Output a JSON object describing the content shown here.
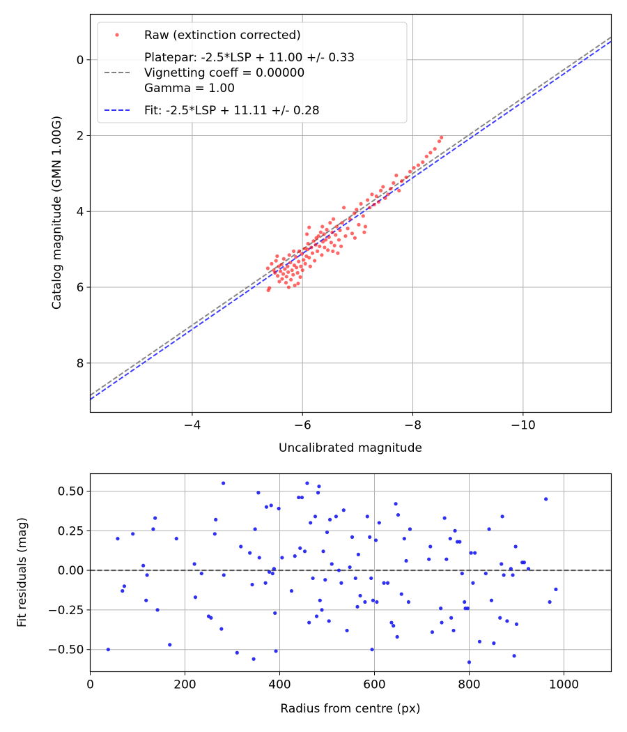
{
  "chart_data": [
    {
      "type": "scatter",
      "xlabel": "Uncalibrated magnitude",
      "ylabel": "Catalog magnitude (GMN 1.00G)",
      "xlim": [
        -2.15,
        -11.6
      ],
      "ylim": [
        9.3,
        -1.2
      ],
      "x_ticks": [
        -4,
        -6,
        -8,
        -10
      ],
      "x_tick_labels": [
        "−4",
        "−6",
        "−8",
        "−10"
      ],
      "y_ticks": [
        0,
        2,
        4,
        6,
        8
      ],
      "y_tick_labels": [
        "0",
        "2",
        "4",
        "6",
        "8"
      ],
      "grid": true,
      "legend_position": "top-left",
      "legend": {
        "raw": "Raw (extinction corrected)",
        "platepar_lines": [
          "Platepar: -2.5*LSP + 11.00 +/- 0.33",
          "Vignetting coeff = 0.00000",
          "Gamma = 1.00"
        ],
        "fit": "Fit: -2.5*LSP + 11.11 +/- 0.28"
      },
      "colors": {
        "raw": "#ff0000",
        "platepar": "#808080",
        "fit": "#3333ff"
      },
      "lines": [
        {
          "name": "Platepar",
          "slope": 1.0,
          "intercept": 11.0,
          "color": "#808080"
        },
        {
          "name": "Fit",
          "slope": 1.0,
          "intercept": 11.11,
          "color": "#3333ff"
        }
      ],
      "series": [
        {
          "name": "Raw (extinction corrected)",
          "points": [
            [
              -5.38,
              6.08
            ],
            [
              -5.4,
              6.02
            ],
            [
              -5.37,
              5.5
            ],
            [
              -5.44,
              5.38
            ],
            [
              -5.48,
              5.55
            ],
            [
              -5.5,
              5.62
            ],
            [
              -5.52,
              5.3
            ],
            [
              -5.55,
              5.7
            ],
            [
              -5.57,
              5.45
            ],
            [
              -5.58,
              5.85
            ],
            [
              -5.6,
              5.58
            ],
            [
              -5.62,
              5.4
            ],
            [
              -5.63,
              5.78
            ],
            [
              -5.65,
              5.65
            ],
            [
              -5.66,
              5.25
            ],
            [
              -5.68,
              5.52
            ],
            [
              -5.7,
              5.88
            ],
            [
              -5.71,
              5.72
            ],
            [
              -5.73,
              5.45
            ],
            [
              -5.74,
              5.6
            ],
            [
              -5.76,
              5.15
            ],
            [
              -5.78,
              5.35
            ],
            [
              -5.79,
              5.8
            ],
            [
              -5.81,
              5.55
            ],
            [
              -5.83,
              5.67
            ],
            [
              -5.85,
              5.42
            ],
            [
              -5.86,
              5.95
            ],
            [
              -5.88,
              5.2
            ],
            [
              -5.89,
              5.48
            ],
            [
              -5.91,
              5.62
            ],
            [
              -5.93,
              5.32
            ],
            [
              -5.94,
              5.05
            ],
            [
              -5.96,
              5.73
            ],
            [
              -5.97,
              5.45
            ],
            [
              -5.99,
              5.12
            ],
            [
              -6.0,
              5.55
            ],
            [
              -6.02,
              5.28
            ],
            [
              -6.04,
              4.98
            ],
            [
              -6.05,
              5.38
            ],
            [
              -6.07,
              5.18
            ],
            [
              -6.09,
              5.0
            ],
            [
              -6.1,
              4.85
            ],
            [
              -6.12,
              5.22
            ],
            [
              -6.14,
              5.45
            ],
            [
              -6.16,
              4.95
            ],
            [
              -6.18,
              5.1
            ],
            [
              -6.2,
              4.78
            ],
            [
              -6.22,
              5.3
            ],
            [
              -6.24,
              4.88
            ],
            [
              -6.25,
              4.7
            ],
            [
              -6.27,
              5.05
            ],
            [
              -6.29,
              4.65
            ],
            [
              -6.31,
              4.92
            ],
            [
              -6.33,
              4.55
            ],
            [
              -6.35,
              5.15
            ],
            [
              -6.37,
              4.8
            ],
            [
              -6.39,
              4.6
            ],
            [
              -6.4,
              4.95
            ],
            [
              -6.42,
              4.75
            ],
            [
              -6.44,
              4.48
            ],
            [
              -6.46,
              5.02
            ],
            [
              -6.48,
              4.68
            ],
            [
              -6.5,
              4.3
            ],
            [
              -6.52,
              4.82
            ],
            [
              -6.54,
              4.55
            ],
            [
              -6.56,
              4.2
            ],
            [
              -6.58,
              4.9
            ],
            [
              -6.6,
              4.62
            ],
            [
              -6.62,
              4.4
            ],
            [
              -6.64,
              5.1
            ],
            [
              -6.66,
              4.75
            ],
            [
              -6.68,
              4.5
            ],
            [
              -6.7,
              4.92
            ],
            [
              -6.72,
              4.3
            ],
            [
              -6.75,
              3.9
            ],
            [
              -6.78,
              4.65
            ],
            [
              -6.82,
              4.45
            ],
            [
              -6.86,
              4.2
            ],
            [
              -6.9,
              4.58
            ],
            [
              -6.94,
              4.05
            ],
            [
              -6.98,
              3.95
            ],
            [
              -7.02,
              4.35
            ],
            [
              -7.06,
              3.8
            ],
            [
              -7.1,
              4.12
            ],
            [
              -7.14,
              4.4
            ],
            [
              -7.18,
              3.7
            ],
            [
              -7.22,
              3.9
            ],
            [
              -7.26,
              3.55
            ],
            [
              -7.3,
              3.82
            ],
            [
              -7.34,
              3.6
            ],
            [
              -7.38,
              3.75
            ],
            [
              -7.42,
              3.45
            ],
            [
              -7.46,
              3.35
            ],
            [
              -7.5,
              3.65
            ],
            [
              -7.55,
              3.55
            ],
            [
              -7.6,
              3.4
            ],
            [
              -7.65,
              3.25
            ],
            [
              -7.7,
              3.05
            ],
            [
              -7.75,
              3.45
            ],
            [
              -7.8,
              3.2
            ],
            [
              -7.88,
              3.1
            ],
            [
              -7.95,
              2.95
            ],
            [
              -8.02,
              2.85
            ],
            [
              -8.1,
              2.78
            ],
            [
              -8.18,
              2.7
            ],
            [
              -8.25,
              2.55
            ],
            [
              -8.32,
              2.45
            ],
            [
              -8.4,
              2.35
            ],
            [
              -8.48,
              2.15
            ],
            [
              -8.52,
              2.05
            ],
            [
              -6.12,
              4.42
            ],
            [
              -6.08,
              4.6
            ],
            [
              -5.92,
              5.9
            ],
            [
              -5.84,
              5.05
            ],
            [
              -6.36,
              4.4
            ],
            [
              -6.55,
              5.05
            ],
            [
              -6.95,
              4.7
            ],
            [
              -7.12,
              4.55
            ],
            [
              -5.54,
              5.18
            ],
            [
              -5.75,
              6.0
            ]
          ]
        }
      ]
    },
    {
      "type": "scatter",
      "xlabel": "Radius from centre (px)",
      "ylabel": "Fit residuals (mag)",
      "xlim": [
        0,
        1100
      ],
      "ylim": [
        -0.64,
        0.61
      ],
      "x_ticks": [
        0,
        200,
        400,
        600,
        800,
        1000
      ],
      "x_tick_labels": [
        "0",
        "200",
        "400",
        "600",
        "800",
        "1000"
      ],
      "y_ticks": [
        0.5,
        0.25,
        0.0,
        -0.25,
        -0.5
      ],
      "y_tick_labels": [
        "0.50",
        "0.25",
        "0.00",
        "−0.25",
        "−0.50"
      ],
      "grid": true,
      "zero_line": {
        "value": 0.0,
        "color": "#555555"
      },
      "colors": {
        "points": "#1a1aee"
      },
      "series": [
        {
          "name": "Residuals",
          "points": [
            [
              38,
              -0.5
            ],
            [
              58,
              0.2
            ],
            [
              68,
              -0.13
            ],
            [
              72,
              -0.1
            ],
            [
              90,
              0.23
            ],
            [
              112,
              0.03
            ],
            [
              118,
              -0.19
            ],
            [
              120,
              -0.03
            ],
            [
              133,
              0.26
            ],
            [
              137,
              0.33
            ],
            [
              142,
              -0.25
            ],
            [
              168,
              -0.47
            ],
            [
              182,
              0.2
            ],
            [
              220,
              0.04
            ],
            [
              222,
              -0.17
            ],
            [
              235,
              -0.02
            ],
            [
              250,
              -0.29
            ],
            [
              255,
              -0.3
            ],
            [
              263,
              0.23
            ],
            [
              265,
              0.32
            ],
            [
              277,
              -0.37
            ],
            [
              281,
              0.55
            ],
            [
              282,
              -0.03
            ],
            [
              310,
              -0.52
            ],
            [
              318,
              0.15
            ],
            [
              337,
              0.11
            ],
            [
              342,
              -0.09
            ],
            [
              345,
              -0.56
            ],
            [
              348,
              0.26
            ],
            [
              355,
              0.49
            ],
            [
              357,
              0.08
            ],
            [
              370,
              -0.08
            ],
            [
              372,
              0.4
            ],
            [
              378,
              -0.01
            ],
            [
              382,
              0.41
            ],
            [
              385,
              -0.02
            ],
            [
              388,
              0.01
            ],
            [
              390,
              -0.27
            ],
            [
              392,
              -0.51
            ],
            [
              398,
              0.39
            ],
            [
              405,
              0.08
            ],
            [
              425,
              -0.13
            ],
            [
              432,
              0.09
            ],
            [
              440,
              0.46
            ],
            [
              443,
              0.14
            ],
            [
              447,
              0.46
            ],
            [
              453,
              0.12
            ],
            [
              458,
              0.55
            ],
            [
              462,
              -0.33
            ],
            [
              465,
              0.3
            ],
            [
              470,
              -0.05
            ],
            [
              475,
              0.34
            ],
            [
              478,
              -0.29
            ],
            [
              481,
              0.49
            ],
            [
              483,
              0.53
            ],
            [
              485,
              -0.19
            ],
            [
              489,
              -0.25
            ],
            [
              492,
              0.12
            ],
            [
              496,
              -0.06
            ],
            [
              500,
              0.24
            ],
            [
              504,
              -0.32
            ],
            [
              506,
              0.32
            ],
            [
              510,
              0.04
            ],
            [
              519,
              0.34
            ],
            [
              525,
              0.0
            ],
            [
              530,
              -0.08
            ],
            [
              535,
              0.38
            ],
            [
              542,
              -0.38
            ],
            [
              548,
              0.02
            ],
            [
              553,
              0.21
            ],
            [
              560,
              -0.05
            ],
            [
              564,
              -0.23
            ],
            [
              566,
              0.1
            ],
            [
              570,
              -0.16
            ],
            [
              580,
              -0.2
            ],
            [
              585,
              0.34
            ],
            [
              590,
              0.21
            ],
            [
              593,
              -0.05
            ],
            [
              595,
              -0.5
            ],
            [
              597,
              -0.19
            ],
            [
              603,
              0.19
            ],
            [
              605,
              -0.2
            ],
            [
              610,
              0.3
            ],
            [
              620,
              -0.08
            ],
            [
              628,
              -0.08
            ],
            [
              636,
              -0.33
            ],
            [
              640,
              -0.35
            ],
            [
              645,
              0.42
            ],
            [
              648,
              -0.42
            ],
            [
              650,
              0.35
            ],
            [
              657,
              -0.15
            ],
            [
              663,
              0.2
            ],
            [
              667,
              0.06
            ],
            [
              672,
              -0.2
            ],
            [
              675,
              0.26
            ],
            [
              715,
              0.07
            ],
            [
              718,
              0.15
            ],
            [
              722,
              -0.39
            ],
            [
              740,
              -0.24
            ],
            [
              742,
              -0.33
            ],
            [
              748,
              0.33
            ],
            [
              752,
              0.07
            ],
            [
              760,
              0.2
            ],
            [
              762,
              -0.3
            ],
            [
              767,
              -0.38
            ],
            [
              770,
              0.25
            ],
            [
              775,
              0.18
            ],
            [
              780,
              0.18
            ],
            [
              785,
              -0.02
            ],
            [
              790,
              -0.2
            ],
            [
              792,
              -0.24
            ],
            [
              797,
              -0.24
            ],
            [
              800,
              -0.58
            ],
            [
              804,
              0.11
            ],
            [
              808,
              -0.08
            ],
            [
              812,
              0.11
            ],
            [
              822,
              -0.45
            ],
            [
              835,
              -0.02
            ],
            [
              842,
              0.26
            ],
            [
              847,
              -0.19
            ],
            [
              852,
              -0.46
            ],
            [
              865,
              -0.3
            ],
            [
              868,
              0.04
            ],
            [
              870,
              0.34
            ],
            [
              873,
              -0.03
            ],
            [
              880,
              -0.32
            ],
            [
              888,
              0.01
            ],
            [
              892,
              -0.03
            ],
            [
              895,
              -0.54
            ],
            [
              898,
              0.15
            ],
            [
              900,
              -0.34
            ],
            [
              912,
              0.05
            ],
            [
              916,
              0.05
            ],
            [
              925,
              0.01
            ],
            [
              962,
              0.45
            ],
            [
              970,
              -0.2
            ],
            [
              983,
              -0.12
            ]
          ]
        }
      ]
    }
  ]
}
